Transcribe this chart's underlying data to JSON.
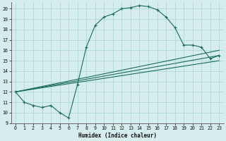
{
  "xlabel": "Humidex (Indice chaleur)",
  "xlim": [
    -0.5,
    23.5
  ],
  "ylim": [
    9,
    20.6
  ],
  "xticks": [
    0,
    1,
    2,
    3,
    4,
    5,
    6,
    7,
    8,
    9,
    10,
    11,
    12,
    13,
    14,
    15,
    16,
    17,
    18,
    19,
    20,
    21,
    22,
    23
  ],
  "yticks": [
    9,
    10,
    11,
    12,
    13,
    14,
    15,
    16,
    17,
    18,
    19,
    20
  ],
  "background_color": "#d5eded",
  "grid_color": "#a8d4d2",
  "line_color": "#1a6b5a",
  "line1_x": [
    0,
    1,
    2,
    3,
    4,
    5,
    6,
    7,
    8,
    9,
    10,
    11,
    12,
    13,
    14,
    15,
    16,
    17,
    18,
    19,
    20,
    21,
    22,
    23
  ],
  "line1_y": [
    12,
    11,
    10.7,
    10.5,
    10.7,
    10.0,
    9.5,
    12.7,
    16.3,
    18.4,
    19.2,
    19.5,
    20.0,
    20.1,
    20.3,
    20.2,
    19.9,
    19.2,
    18.2,
    16.5,
    16.5,
    16.3,
    15.2,
    15.5
  ],
  "line2_x": [
    0,
    1,
    2,
    3,
    4,
    5,
    6,
    7,
    8,
    9,
    10,
    11,
    12,
    13,
    14,
    15,
    16,
    17,
    18,
    19,
    20,
    21,
    22,
    23
  ],
  "line2_y": [
    12,
    11,
    10.7,
    10.5,
    10.7,
    10.0,
    9.5,
    12.7,
    16.3,
    18.4,
    19.2,
    19.5,
    20.0,
    20.1,
    20.3,
    20.2,
    19.9,
    19.2,
    18.2,
    16.5,
    16.5,
    16.3,
    15.2,
    15.5
  ],
  "line3_x": [
    0,
    7,
    23
  ],
  "line3_y": [
    12,
    12.0,
    16.0
  ],
  "line4_x": [
    0,
    7,
    23
  ],
  "line4_y": [
    12,
    12.0,
    15.5
  ],
  "line5_x": [
    0,
    7,
    23
  ],
  "line5_y": [
    12,
    12.0,
    15.1
  ]
}
